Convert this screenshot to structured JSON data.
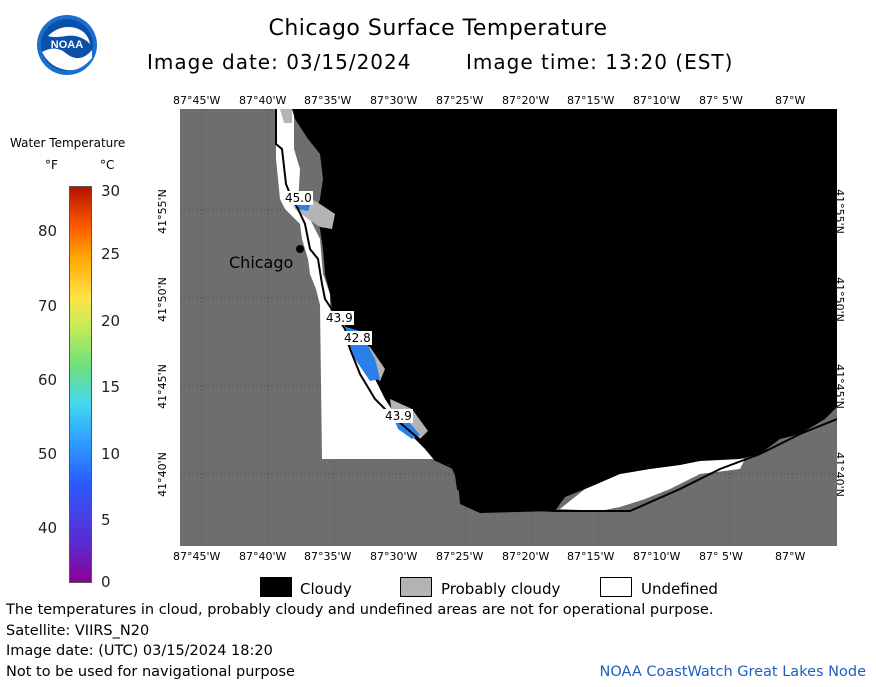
{
  "header": {
    "title": "Chicago Surface Temperature",
    "image_date": "Image date: 03/15/2024",
    "image_time": "Image time: 13:20 (EST)"
  },
  "logo": {
    "text": "NOAA",
    "icon": "noaa-logo-icon"
  },
  "longitude_ticks": [
    "87°45'W",
    "87°40'W",
    "87°35'W",
    "87°30'W",
    "87°25'W",
    "87°20'W",
    "87°15'W",
    "87°10'W",
    "87° 5'W",
    "87°W"
  ],
  "latitude_ticks": [
    "41°55'N",
    "41°50'N",
    "41°45'N",
    "41°40'N"
  ],
  "colorbar": {
    "title": "Water Temperature",
    "unit_f": "°F",
    "unit_c": "°C",
    "fahrenheit_labels": [
      "80",
      "70",
      "60",
      "50",
      "40"
    ],
    "celsius_labels": [
      "30",
      "25",
      "20",
      "15",
      "10",
      "5",
      "0"
    ]
  },
  "map": {
    "city_label": "Chicago",
    "temperature_labels": [
      "45.0",
      "43.9",
      "42.8",
      "43.9"
    ]
  },
  "key": {
    "cloudy": "Cloudy",
    "probably_cloudy": "Probably cloudy",
    "undefined": "Undefined"
  },
  "footer": {
    "line1": "The temperatures in cloud, probably cloudy and undefined areas are not for operational purpose.",
    "line2": "Satellite: VIIRS_N20",
    "line3": "Image date: (UTC) 03/15/2024  18:20",
    "line4": "Not to be used for navigational purpose",
    "credit": "NOAA CoastWatch Great Lakes Node"
  },
  "colors": {
    "land": "#6e6e6e",
    "cloud": "#000000",
    "probably_cloudy": "#b4b4b4",
    "undefined": "#ffffff",
    "water": "#2b7fe8",
    "credit": "#1f5fbf"
  }
}
